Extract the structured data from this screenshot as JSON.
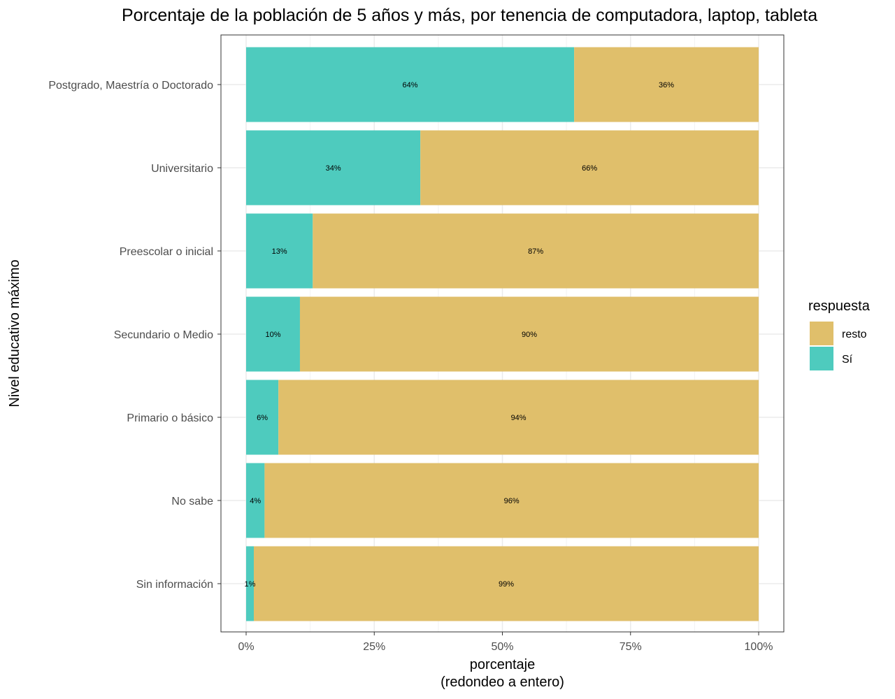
{
  "chart_data": {
    "type": "bar",
    "orientation": "horizontal",
    "stacked": true,
    "title": "Porcentaje de la población de 5 años y más, por tenencia de computadora, laptop, tableta",
    "xlabel": "porcentaje",
    "xlabel_sub": "(redondeo a entero)",
    "ylabel": "Nivel educativo máximo",
    "xlim": [
      0,
      100
    ],
    "x_ticks": [
      0,
      25,
      50,
      75,
      100
    ],
    "x_tick_labels": [
      "0%",
      "25%",
      "50%",
      "75%",
      "100%"
    ],
    "grid": true,
    "legend_position": "right",
    "legend_title": "respuesta",
    "categories": [
      "Postgrado, Maestría o Doctorado",
      "Universitario",
      "Preescolar o inicial",
      "Secundario o Medio",
      "Primario o básico",
      "No sabe",
      "Sin información"
    ],
    "series": [
      {
        "name": "Sí",
        "color": "#4ecbbe",
        "values": [
          64,
          34,
          13,
          10.5,
          6.3,
          3.6,
          1.5
        ],
        "labels": [
          "64%",
          "34%",
          "13%",
          "10%",
          "6%",
          "4%",
          "1%"
        ]
      },
      {
        "name": "resto",
        "color": "#e0bf6b",
        "values": [
          36,
          66,
          87,
          89.5,
          93.7,
          96.4,
          98.5
        ],
        "labels": [
          "36%",
          "66%",
          "87%",
          "90%",
          "94%",
          "96%",
          "99%"
        ]
      }
    ],
    "legend": [
      {
        "name": "resto",
        "color": "#e0bf6b"
      },
      {
        "name": "Sí",
        "color": "#4ecbbe"
      }
    ]
  }
}
